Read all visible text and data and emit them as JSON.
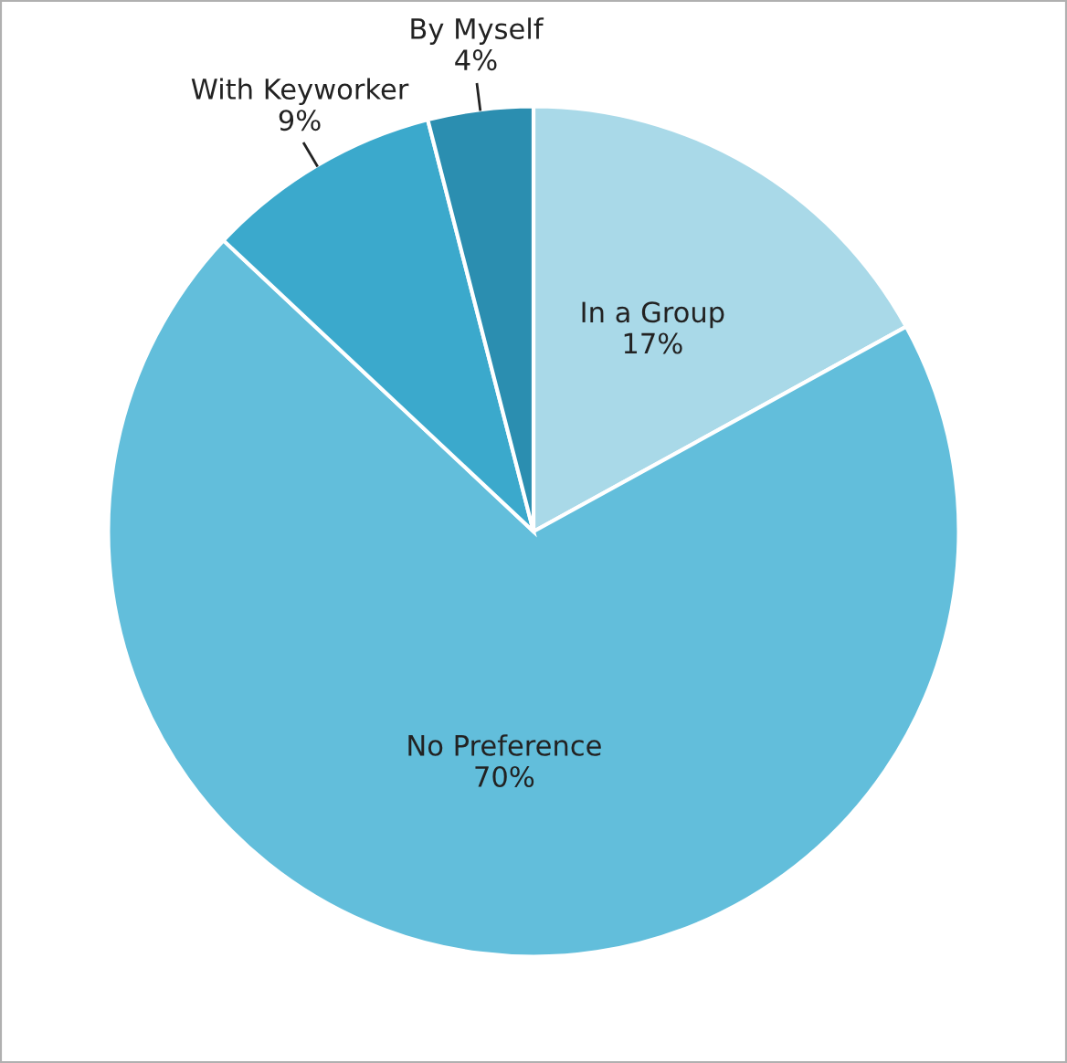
{
  "chart_data": {
    "type": "pie",
    "categories": [
      "In a Group",
      "No Preference",
      "With Keyworker",
      "By Myself"
    ],
    "values": [
      17,
      70,
      9,
      4
    ],
    "colors": [
      "#a9d9e8",
      "#62bedb",
      "#3ba9cc",
      "#2b8eb0"
    ],
    "value_labels": [
      "17%",
      "70%",
      "9%",
      "4%"
    ]
  }
}
